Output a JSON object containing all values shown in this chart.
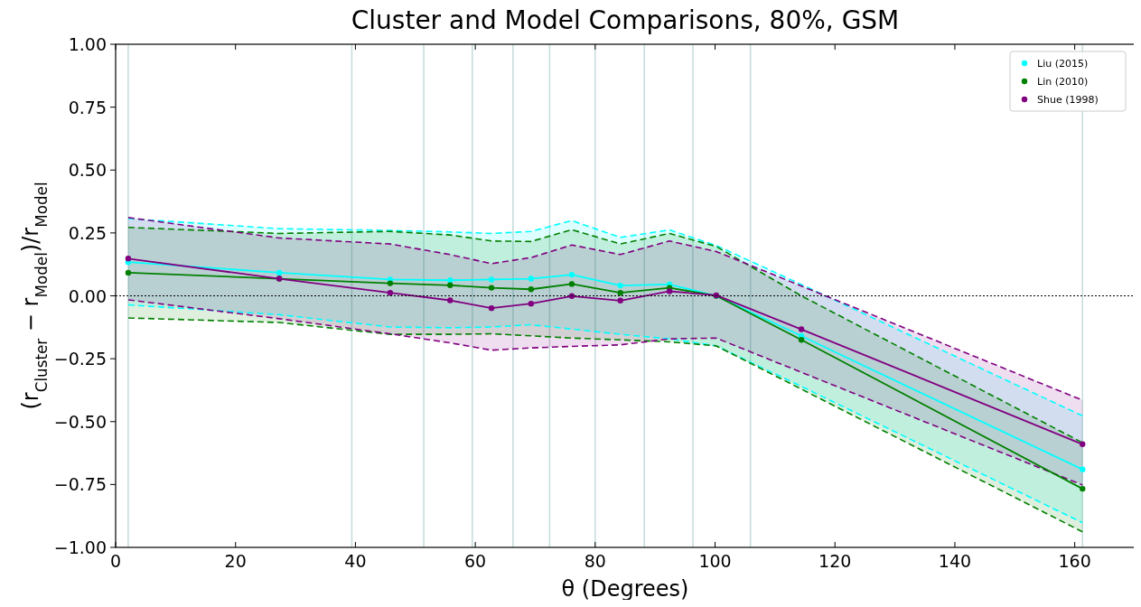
{
  "chart_data": {
    "type": "line",
    "title": "Cluster and Model Comparisons, 80%, GSM",
    "xlabel": "θ (Degrees)",
    "ylabel": "(r$_{Cluster}$ − r$_{Model}$)/r$_{Model}$",
    "x": [
      2.1,
      27.3,
      45.8,
      55.8,
      62.7,
      69.3,
      76.1,
      84.2,
      92.4,
      100.2,
      114.4,
      161.3
    ],
    "series": [
      {
        "name": "Liu (2015)",
        "color": "#00ffff",
        "values": [
          0.134,
          0.092,
          0.065,
          0.062,
          0.065,
          0.068,
          0.084,
          0.041,
          0.045,
          0.0,
          -0.16,
          -0.69
        ],
        "upper": [
          0.307,
          0.267,
          0.26,
          0.254,
          0.248,
          0.256,
          0.299,
          0.232,
          0.262,
          0.2,
          0.045,
          -0.477
        ],
        "lower": [
          -0.036,
          -0.075,
          -0.124,
          -0.127,
          -0.124,
          -0.115,
          -0.132,
          -0.153,
          -0.171,
          -0.199,
          -0.36,
          -0.902
        ]
      },
      {
        "name": "Lin (2010)",
        "color": "#008000",
        "values": [
          0.092,
          0.068,
          0.05,
          0.042,
          0.032,
          0.026,
          0.047,
          0.012,
          0.032,
          0.0,
          -0.175,
          -0.767
        ],
        "upper": [
          0.272,
          0.248,
          0.256,
          0.242,
          0.218,
          0.216,
          0.263,
          0.206,
          0.248,
          0.196,
          0.0,
          -0.584
        ],
        "lower": [
          -0.088,
          -0.106,
          -0.153,
          -0.153,
          -0.151,
          -0.159,
          -0.168,
          -0.175,
          -0.183,
          -0.199,
          -0.371,
          -0.938
        ]
      },
      {
        "name": "Shue (1998)",
        "color": "#800080",
        "values": [
          0.148,
          0.068,
          0.012,
          -0.018,
          -0.049,
          -0.031,
          -0.001,
          -0.019,
          0.018,
          0.002,
          -0.133,
          -0.59
        ],
        "upper": [
          0.311,
          0.23,
          0.206,
          0.164,
          0.128,
          0.152,
          0.202,
          0.164,
          0.218,
          0.176,
          0.039,
          -0.415
        ],
        "lower": [
          -0.016,
          -0.091,
          -0.151,
          -0.187,
          -0.216,
          -0.207,
          -0.201,
          -0.195,
          -0.171,
          -0.168,
          -0.304,
          -0.752
        ]
      },
      {
        "color": "#00ffff",
        "line_style": "dashed",
        "marker": "none",
        "values": [
          0.307,
          0.267,
          0.26,
          0.254,
          0.248,
          0.256,
          0.299,
          0.232,
          0.262,
          0.2,
          0.045,
          -0.477
        ]
      },
      {
        "color": "#00ffff",
        "line_style": "dashed",
        "marker": "none",
        "values": [
          -0.036,
          -0.075,
          -0.124,
          -0.127,
          -0.124,
          -0.115,
          -0.132,
          -0.153,
          -0.171,
          -0.199,
          -0.36,
          -0.902
        ]
      },
      {
        "color": "#008000",
        "line_style": "dashed",
        "marker": "none",
        "values": [
          0.272,
          0.248,
          0.256,
          0.242,
          0.218,
          0.216,
          0.263,
          0.206,
          0.248,
          0.196,
          0.0,
          -0.584
        ]
      },
      {
        "color": "#008000",
        "line_style": "dashed",
        "marker": "none",
        "values": [
          -0.088,
          -0.106,
          -0.153,
          -0.153,
          -0.151,
          -0.159,
          -0.168,
          -0.175,
          -0.183,
          -0.199,
          -0.371,
          -0.938
        ]
      },
      {
        "color": "#800080",
        "line_style": "dashed",
        "marker": "none",
        "values": [
          0.311,
          0.23,
          0.206,
          0.164,
          0.128,
          0.152,
          0.202,
          0.164,
          0.218,
          0.176,
          0.039,
          -0.415
        ]
      },
      {
        "color": "#800080",
        "line_style": "dashed",
        "marker": "none",
        "values": [
          -0.016,
          -0.091,
          -0.151,
          -0.187,
          -0.216,
          -0.207,
          -0.201,
          -0.195,
          -0.171,
          -0.168,
          -0.304,
          -0.752
        ]
      }
    ],
    "xlim": [
      0,
      170
    ],
    "xticks": [
      0,
      20,
      40,
      60,
      80,
      100,
      120,
      140,
      160
    ],
    "ylim": [
      -1,
      1
    ],
    "yticks": [
      {
        "value": -1,
        "label": "−1.00"
      },
      {
        "value": -0.75,
        "label": "−0.75"
      },
      {
        "value": -0.5,
        "label": "−0.50"
      },
      {
        "value": -0.25,
        "label": "−0.25"
      },
      {
        "value": 0,
        "label": "0.00"
      },
      {
        "value": 0.25,
        "label": "0.25"
      },
      {
        "value": 0.5,
        "label": "0.50"
      },
      {
        "value": 0.75,
        "label": "0.75"
      },
      {
        "value": 1,
        "label": "1.00"
      }
    ],
    "ref_lines": [
      {
        "axis": "y",
        "value": 0,
        "color": "#000000",
        "line_style": "dotted"
      },
      {
        "axis": "x",
        "value": 2.1,
        "color": "#c5dada"
      },
      {
        "axis": "x",
        "value": 39.4,
        "color": "#c5dada"
      },
      {
        "axis": "x",
        "value": 51.4,
        "color": "#c5dada"
      },
      {
        "axis": "x",
        "value": 59.5,
        "color": "#c5dada"
      },
      {
        "axis": "x",
        "value": 66.3,
        "color": "#c5dada"
      },
      {
        "axis": "x",
        "value": 72.4,
        "color": "#c5dada"
      },
      {
        "axis": "x",
        "value": 80.0,
        "color": "#c5dada"
      },
      {
        "axis": "x",
        "value": 88.2,
        "color": "#c5dada"
      },
      {
        "axis": "x",
        "value": 96.3,
        "color": "#c5dada"
      },
      {
        "axis": "x",
        "value": 105.9,
        "color": "#c5dada"
      },
      {
        "axis": "x",
        "value": 161.3,
        "color": "#c5dada"
      }
    ],
    "legend": "top right",
    "marker": "circle",
    "line_style": "solid",
    "grid": false
  }
}
